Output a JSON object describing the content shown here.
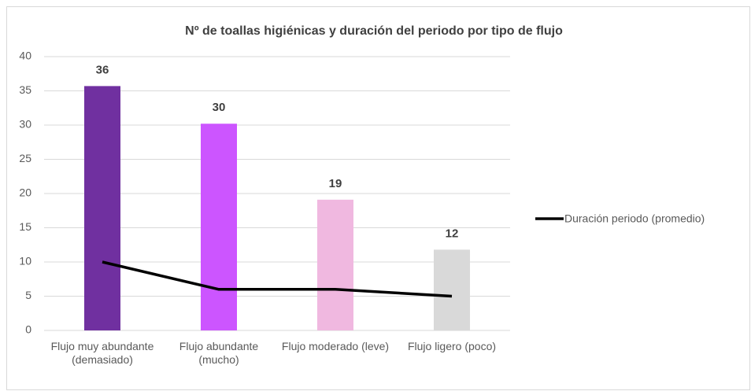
{
  "chart_data": {
    "type": "bar",
    "title": "Nº de toallas higiénicas y duración del periodo por tipo de flujo",
    "categories": [
      "Flujo muy abundante (demasiado)",
      "Flujo abundante (mucho)",
      "Flujo moderado (leve)",
      "Flujo ligero (poco)"
    ],
    "series": [
      {
        "type": "bar",
        "colors": [
          "#7030a0",
          "#cc55ff",
          "#f0b8e0",
          "#d9d9d9"
        ],
        "values": [
          35.7,
          30.2,
          19.1,
          11.8
        ],
        "value_labels": [
          "36",
          "30",
          "19",
          "12"
        ]
      },
      {
        "type": "line",
        "name": "Duración periodo (promedio)",
        "color": "#000000",
        "values": [
          10,
          6,
          6,
          5
        ]
      }
    ],
    "ylim": [
      0,
      40
    ],
    "yticks": [
      0,
      5,
      10,
      15,
      20,
      25,
      30,
      35,
      40
    ],
    "grid": true,
    "legend": "right"
  }
}
